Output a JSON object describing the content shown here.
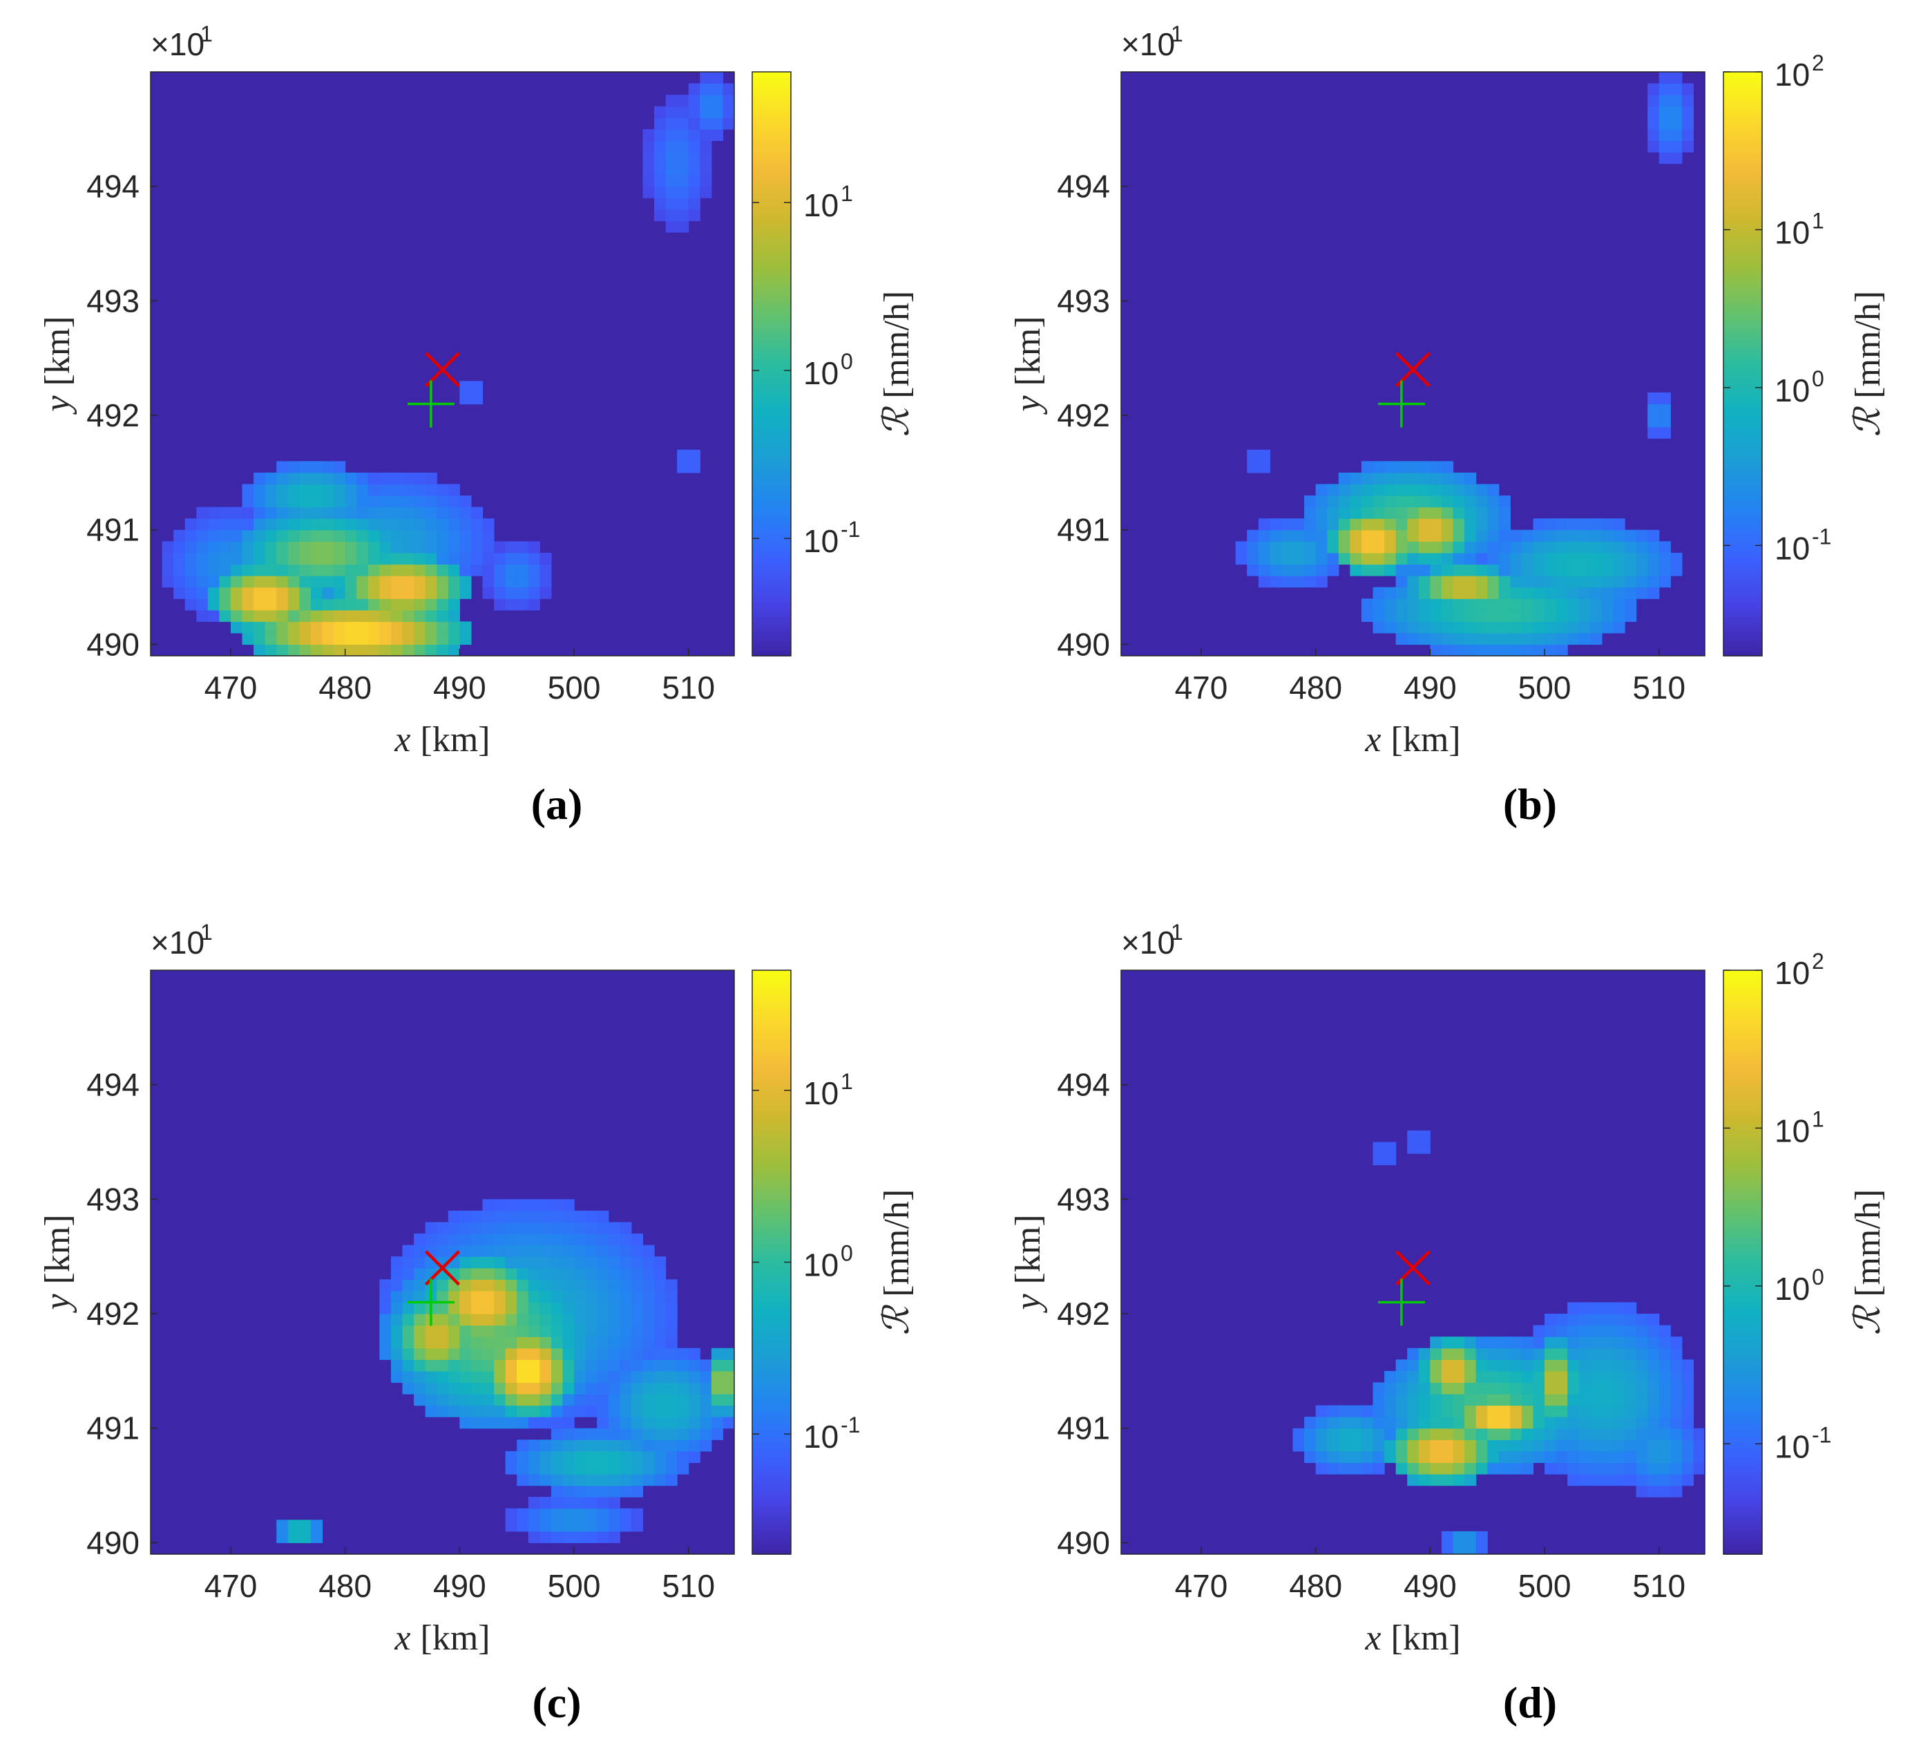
{
  "colors": {
    "background_rain": "#3e26a8",
    "colormap": [
      "#3e26a8",
      "#4742e4",
      "#3a62fe",
      "#2483f2",
      "#1c9dd6",
      "#11b1c2",
      "#2bbca0",
      "#62c16f",
      "#9cbf3d",
      "#cdb82f",
      "#f3bb38",
      "#fbd82b",
      "#f9fb14"
    ],
    "marker_x": "#e00000",
    "marker_plus": "#00cc00"
  },
  "shared": {
    "xlabel_var": "x",
    "xlabel_unit": "[km]",
    "ylabel_var": "y",
    "ylabel_unit": "[km]",
    "cbar_label_var": "ℛ",
    "cbar_label_unit": "[mm/h]",
    "y_multiplier_base": "×10",
    "y_multiplier_exp": "1"
  },
  "chart_data": [
    {
      "type": "heatmap",
      "panel_label": "(a)",
      "x_range": [
        463,
        514
      ],
      "y_range": [
        4899,
        4950
      ],
      "xticks": [
        470,
        480,
        490,
        500,
        510
      ],
      "yticks": [
        "490",
        "491",
        "492",
        "493",
        "494"
      ],
      "ytick_values": [
        4900,
        4910,
        4920,
        4930,
        4940
      ],
      "cbar_scale": "log",
      "cbar_range": [
        0.02,
        60
      ],
      "cbar_ticks": [
        {
          "value": 0.1,
          "mantissa": "10",
          "exp": "-1"
        },
        {
          "value": 1,
          "mantissa": "10",
          "exp": "0"
        },
        {
          "value": 10,
          "mantissa": "10",
          "exp": "1"
        }
      ],
      "markers": [
        {
          "type": "x",
          "x": 488.5,
          "y": 4924
        },
        {
          "type": "+",
          "x": 487.5,
          "y": 4921
        }
      ],
      "rain_cells": [
        {
          "x": 481,
          "y": 4901,
          "rx": 10,
          "ry": 3,
          "value": 35
        },
        {
          "x": 473,
          "y": 4904,
          "rx": 5,
          "ry": 3,
          "value": 25
        },
        {
          "x": 485,
          "y": 4905,
          "rx": 6,
          "ry": 3,
          "value": 20
        },
        {
          "x": 478,
          "y": 4908,
          "rx": 8,
          "ry": 4,
          "value": 3
        },
        {
          "x": 477,
          "y": 4913,
          "rx": 6,
          "ry": 3,
          "value": 0.6
        },
        {
          "x": 484,
          "y": 4909,
          "rx": 9,
          "ry": 6,
          "value": 0.3
        },
        {
          "x": 470,
          "y": 4907,
          "rx": 6,
          "ry": 5,
          "value": 0.2
        },
        {
          "x": 495,
          "y": 4906,
          "rx": 3,
          "ry": 3,
          "value": 0.15
        },
        {
          "x": 509,
          "y": 4942,
          "rx": 3,
          "ry": 6,
          "value": 0.12
        },
        {
          "x": 512,
          "y": 4947,
          "rx": 2,
          "ry": 3,
          "value": 0.15
        },
        {
          "x": 510,
          "y": 4916,
          "rx": 1,
          "ry": 1,
          "value": 0.15
        },
        {
          "x": 491,
          "y": 4922,
          "rx": 1,
          "ry": 1,
          "value": 0.15
        }
      ]
    },
    {
      "type": "heatmap",
      "panel_label": "(b)",
      "x_range": [
        463,
        514
      ],
      "y_range": [
        4899,
        4950
      ],
      "xticks": [
        470,
        480,
        490,
        500,
        510
      ],
      "yticks": [
        "490",
        "491",
        "492",
        "493",
        "494"
      ],
      "ytick_values": [
        4900,
        4910,
        4920,
        4930,
        4940
      ],
      "cbar_scale": "log",
      "cbar_range": [
        0.02,
        100
      ],
      "cbar_ticks": [
        {
          "value": 0.1,
          "mantissa": "10",
          "exp": "-1"
        },
        {
          "value": 1,
          "mantissa": "10",
          "exp": "0"
        },
        {
          "value": 10,
          "mantissa": "10",
          "exp": "1"
        },
        {
          "value": 100,
          "mantissa": "10",
          "exp": "2"
        }
      ],
      "markers": [
        {
          "type": "x",
          "x": 488.5,
          "y": 4924
        },
        {
          "type": "+",
          "x": 487.5,
          "y": 4921
        }
      ],
      "rain_cells": [
        {
          "x": 485,
          "y": 4909,
          "rx": 4,
          "ry": 3,
          "value": 40
        },
        {
          "x": 490,
          "y": 4910,
          "rx": 4,
          "ry": 3,
          "value": 20
        },
        {
          "x": 493,
          "y": 4905,
          "rx": 5,
          "ry": 2,
          "value": 15
        },
        {
          "x": 488,
          "y": 4911,
          "rx": 9,
          "ry": 5,
          "value": 2
        },
        {
          "x": 496,
          "y": 4903,
          "rx": 12,
          "ry": 4,
          "value": 1.5
        },
        {
          "x": 503,
          "y": 4907,
          "rx": 9,
          "ry": 4,
          "value": 0.8
        },
        {
          "x": 478,
          "y": 4908,
          "rx": 5,
          "ry": 3,
          "value": 0.4
        },
        {
          "x": 511,
          "y": 4946,
          "rx": 2,
          "ry": 4,
          "value": 0.2
        },
        {
          "x": 510,
          "y": 4920,
          "rx": 1,
          "ry": 2,
          "value": 0.3
        },
        {
          "x": 475,
          "y": 4916,
          "rx": 1,
          "ry": 1,
          "value": 0.15
        }
      ]
    },
    {
      "type": "heatmap",
      "panel_label": "(c)",
      "x_range": [
        463,
        514
      ],
      "y_range": [
        4899,
        4950
      ],
      "xticks": [
        470,
        480,
        490,
        500,
        510
      ],
      "yticks": [
        "490",
        "491",
        "492",
        "493",
        "494"
      ],
      "ytick_values": [
        4900,
        4910,
        4920,
        4930,
        4940
      ],
      "cbar_scale": "log",
      "cbar_range": [
        0.02,
        50
      ],
      "cbar_ticks": [
        {
          "value": 0.1,
          "mantissa": "10",
          "exp": "-1"
        },
        {
          "value": 1,
          "mantissa": "10",
          "exp": "0"
        },
        {
          "value": 10,
          "mantissa": "10",
          "exp": "1"
        }
      ],
      "markers": [
        {
          "type": "x",
          "x": 488.5,
          "y": 4924
        },
        {
          "type": "+",
          "x": 487.5,
          "y": 4921
        }
      ],
      "rain_cells": [
        {
          "x": 496,
          "y": 4915,
          "rx": 4,
          "ry": 4,
          "value": 35
        },
        {
          "x": 492,
          "y": 4921,
          "rx": 5,
          "ry": 4,
          "value": 18
        },
        {
          "x": 488,
          "y": 4918,
          "rx": 4,
          "ry": 4,
          "value": 8
        },
        {
          "x": 493,
          "y": 4918,
          "rx": 10,
          "ry": 8,
          "value": 2
        },
        {
          "x": 496,
          "y": 4920,
          "rx": 13,
          "ry": 10,
          "value": 0.4
        },
        {
          "x": 508,
          "y": 4912,
          "rx": 6,
          "ry": 5,
          "value": 0.5
        },
        {
          "x": 502,
          "y": 4907,
          "rx": 8,
          "ry": 3,
          "value": 0.6
        },
        {
          "x": 500,
          "y": 4902,
          "rx": 6,
          "ry": 2,
          "value": 0.2
        },
        {
          "x": 476,
          "y": 4901,
          "rx": 2,
          "ry": 1,
          "value": 1.5
        },
        {
          "x": 513,
          "y": 4914,
          "rx": 1,
          "ry": 3,
          "value": 10
        }
      ]
    },
    {
      "type": "heatmap",
      "panel_label": "(d)",
      "x_range": [
        463,
        514
      ],
      "y_range": [
        4899,
        4950
      ],
      "xticks": [
        470,
        480,
        490,
        500,
        510
      ],
      "yticks": [
        "490",
        "491",
        "492",
        "493",
        "494"
      ],
      "ytick_values": [
        4900,
        4910,
        4920,
        4930,
        4940
      ],
      "cbar_scale": "log",
      "cbar_range": [
        0.02,
        100
      ],
      "cbar_ticks": [
        {
          "value": 0.1,
          "mantissa": "10",
          "exp": "-1"
        },
        {
          "value": 1,
          "mantissa": "10",
          "exp": "0"
        },
        {
          "value": 10,
          "mantissa": "10",
          "exp": "1"
        },
        {
          "value": 100,
          "mantissa": "10",
          "exp": "2"
        }
      ],
      "markers": [
        {
          "type": "x",
          "x": 488.5,
          "y": 4924
        },
        {
          "type": "+",
          "x": 487.5,
          "y": 4921
        }
      ],
      "rain_cells": [
        {
          "x": 496,
          "y": 4911,
          "rx": 4,
          "ry": 2,
          "value": 60
        },
        {
          "x": 491,
          "y": 4908,
          "rx": 5,
          "ry": 3,
          "value": 30
        },
        {
          "x": 492,
          "y": 4915,
          "rx": 3,
          "ry": 3,
          "value": 20
        },
        {
          "x": 501,
          "y": 4914,
          "rx": 2,
          "ry": 4,
          "value": 12
        },
        {
          "x": 495,
          "y": 4912,
          "rx": 10,
          "ry": 6,
          "value": 2
        },
        {
          "x": 505,
          "y": 4913,
          "rx": 8,
          "ry": 8,
          "value": 0.6
        },
        {
          "x": 510,
          "y": 4908,
          "rx": 4,
          "ry": 4,
          "value": 0.3
        },
        {
          "x": 483,
          "y": 4909,
          "rx": 5,
          "ry": 3,
          "value": 0.6
        },
        {
          "x": 486,
          "y": 4934,
          "rx": 1,
          "ry": 1,
          "value": 0.15
        },
        {
          "x": 489,
          "y": 4935,
          "rx": 1,
          "ry": 1,
          "value": 0.15
        },
        {
          "x": 493,
          "y": 4900,
          "rx": 2,
          "ry": 1,
          "value": 0.5
        }
      ]
    }
  ]
}
